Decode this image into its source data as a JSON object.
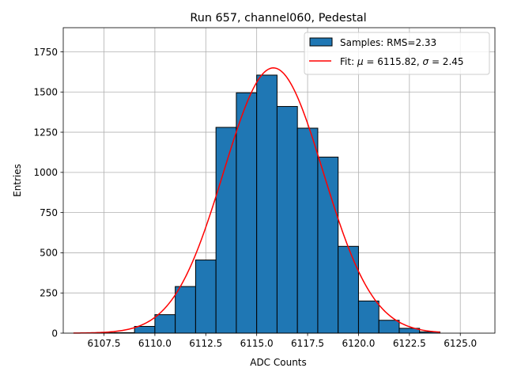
{
  "chart_data": {
    "type": "bar",
    "title": "Run 657, channel060, Pedestal",
    "xlabel": "ADC Counts",
    "ylabel": "Entries",
    "xlim": [
      6105.5,
      6126.7
    ],
    "ylim": [
      0,
      1900
    ],
    "grid": true,
    "legend_position": "top-right",
    "xticks": [
      6107.5,
      6110.0,
      6112.5,
      6115.0,
      6117.5,
      6120.0,
      6122.5,
      6125.0
    ],
    "xtick_labels": [
      "6107.5",
      "6110.0",
      "6112.5",
      "6115.0",
      "6117.5",
      "6120.0",
      "6122.5",
      "6125.0"
    ],
    "yticks": [
      0,
      250,
      500,
      750,
      1000,
      1250,
      1500,
      1750
    ],
    "ytick_labels": [
      "0",
      "250",
      "500",
      "750",
      "1000",
      "1250",
      "1500",
      "1750"
    ],
    "histogram": {
      "name": "Samples: RMS=2.33",
      "bin_edges": [
        6107,
        6108,
        6109,
        6110,
        6111,
        6112,
        6113,
        6114,
        6115,
        6116,
        6117,
        6118,
        6119,
        6120,
        6121,
        6122,
        6123,
        6124
      ],
      "counts": [
        2,
        3,
        42,
        115,
        290,
        455,
        1280,
        1495,
        1605,
        1410,
        1275,
        1095,
        540,
        200,
        80,
        30,
        8
      ],
      "color": "#1f77b4",
      "edgecolor": "#000000"
    },
    "fit": {
      "name": "Fit: μ = 6115.82, σ = 2.45",
      "mu": 6115.82,
      "sigma": 2.45,
      "amplitude": 1650,
      "x_range": [
        6106,
        6124
      ],
      "color": "#ff0000"
    }
  },
  "legend": {
    "hist_prefix": "Samples: RMS=2.33",
    "fit_prefix": "Fit: ",
    "fit_mu_symbol": "μ",
    "fit_mu_value": " = 6115.82, ",
    "fit_sigma_symbol": "σ",
    "fit_sigma_value": " = 2.45"
  }
}
